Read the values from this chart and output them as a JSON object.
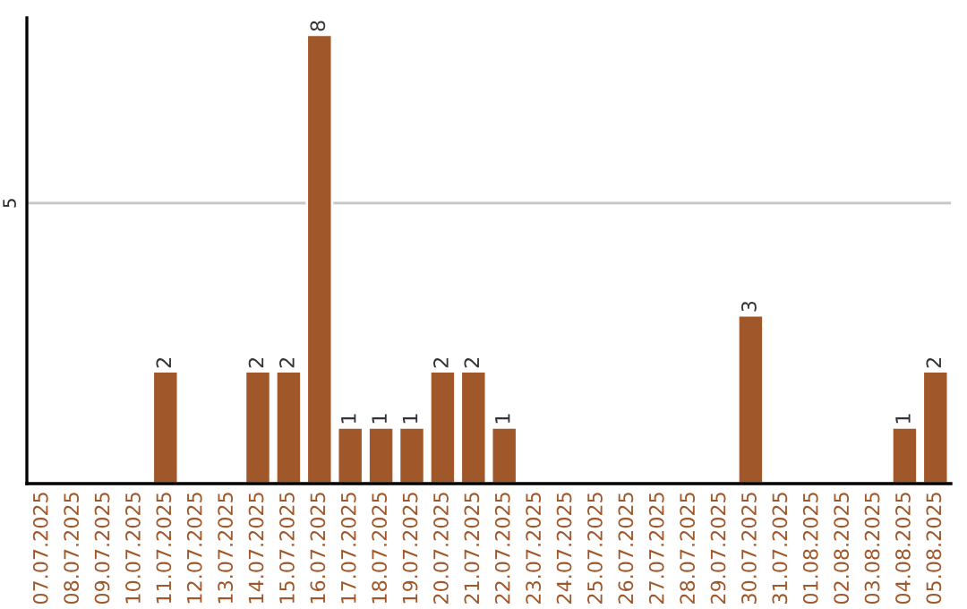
{
  "chart_data": {
    "type": "bar",
    "categories": [
      "07.07.2025",
      "08.07.2025",
      "09.07.2025",
      "10.07.2025",
      "11.07.2025",
      "12.07.2025",
      "13.07.2025",
      "14.07.2025",
      "15.07.2025",
      "16.07.2025",
      "17.07.2025",
      "18.07.2025",
      "19.07.2025",
      "20.07.2025",
      "21.07.2025",
      "22.07.2025",
      "23.07.2025",
      "24.07.2025",
      "25.07.2025",
      "26.07.2025",
      "27.07.2025",
      "28.07.2025",
      "29.07.2025",
      "30.07.2025",
      "31.07.2025",
      "01.08.2025",
      "02.08.2025",
      "03.08.2025",
      "04.08.2025",
      "05.08.2025"
    ],
    "values": [
      null,
      null,
      null,
      null,
      2,
      null,
      null,
      2,
      2,
      8,
      1,
      1,
      1,
      2,
      2,
      1,
      null,
      null,
      null,
      null,
      null,
      null,
      null,
      3,
      null,
      null,
      null,
      null,
      1,
      2
    ],
    "value_labels": [
      null,
      null,
      null,
      null,
      "2",
      null,
      null,
      "2",
      "2",
      "8",
      "1",
      "1",
      "1",
      "2",
      "2",
      "1",
      null,
      null,
      null,
      null,
      null,
      null,
      null,
      "3",
      null,
      null,
      null,
      null,
      "1",
      "2"
    ],
    "color": "#a0572a",
    "ylim": [
      0,
      8.3
    ],
    "yticks": [
      5
    ],
    "grid": "y",
    "legend": false
  }
}
